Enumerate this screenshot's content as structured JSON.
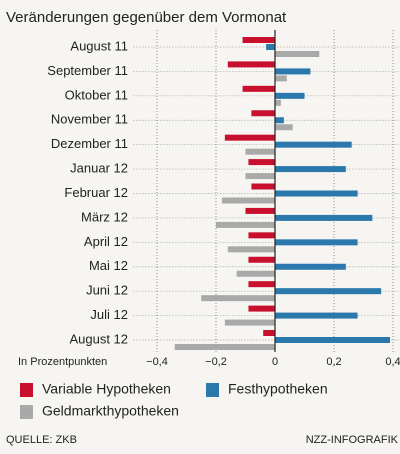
{
  "chart_data": {
    "type": "hbar",
    "subtitle": "Veränderungen gegenüber dem Vormonat",
    "x_label": "In Prozentpunkten",
    "categories": [
      "August 11",
      "September 11",
      "Oktober 11",
      "November 11",
      "Dezember 11",
      "Januar 12",
      "Februar 12",
      "März 12",
      "April 12",
      "Mai 12",
      "Juni 12",
      "Juli 12",
      "August 12"
    ],
    "series": [
      {
        "name": "Variable Hypotheken",
        "color": "#c8102e",
        "values": [
          -0.11,
          -0.16,
          -0.11,
          -0.08,
          -0.17,
          -0.09,
          -0.08,
          -0.1,
          -0.09,
          -0.09,
          -0.09,
          -0.09,
          -0.04
        ]
      },
      {
        "name": "Festhypotheken",
        "color": "#2b78ad",
        "values": [
          -0.03,
          0.12,
          0.1,
          0.03,
          0.26,
          0.24,
          0.28,
          0.33,
          0.28,
          0.24,
          0.36,
          0.28,
          0.39
        ]
      },
      {
        "name": "Geldmarkthypotheken",
        "color": "#a9a9a9",
        "values": [
          0.15,
          0.04,
          0.02,
          0.06,
          -0.1,
          -0.1,
          -0.18,
          -0.2,
          -0.16,
          -0.13,
          -0.25,
          -0.17,
          -0.34
        ]
      }
    ],
    "xlim": [
      -0.48,
      0.42
    ],
    "xticks": [
      {
        "value": -0.4,
        "label": "−0,4"
      },
      {
        "value": -0.2,
        "label": "−0,2"
      },
      0,
      {
        "value": 0.2,
        "label": "0,2"
      },
      {
        "value": 0.4,
        "label": "0,4"
      }
    ],
    "grid": true,
    "source": "QUELLE: ZKB",
    "credit": "NZZ-INFOGRAFIK"
  }
}
